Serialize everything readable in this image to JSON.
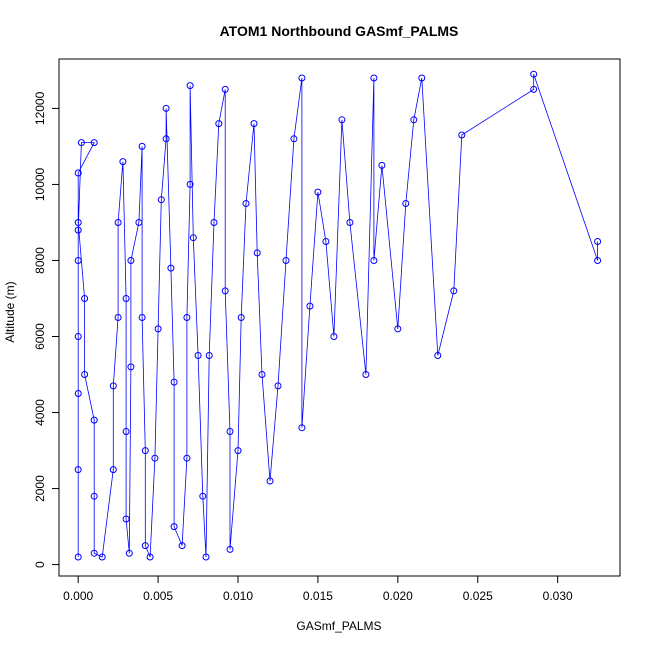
{
  "chart_data": {
    "type": "scatter",
    "title": "ATOM1 Northbound GASmf_PALMS",
    "xlabel": "GASmf_PALMS",
    "ylabel": "Altitude (m)",
    "xlim": [
      -0.0012,
      0.0339
    ],
    "ylim": [
      -300,
      13300
    ],
    "x_ticks": [
      0.0,
      0.005,
      0.01,
      0.015,
      0.02,
      0.025,
      0.03
    ],
    "x_tick_labels": [
      "0.000",
      "0.005",
      "0.010",
      "0.015",
      "0.020",
      "0.025",
      "0.030"
    ],
    "y_ticks": [
      0,
      2000,
      4000,
      6000,
      8000,
      10000,
      12000
    ],
    "y_tick_labels": [
      "0",
      "2000",
      "4000",
      "6000",
      "8000",
      "10000",
      "12000"
    ],
    "marker": "open-circle",
    "connected": true,
    "grid": false,
    "legend": "none",
    "color": "#0000ff",
    "series": [
      {
        "values_note": "",
        "points": [
          [
            0.0,
            200
          ],
          [
            0.0,
            2500
          ],
          [
            0.0,
            4500
          ],
          [
            0.0,
            6000
          ],
          [
            0.0,
            8000
          ],
          [
            0.0,
            8800
          ],
          [
            0.0002,
            11100
          ],
          [
            0.001,
            11100
          ],
          [
            0.0,
            10300
          ],
          [
            0.0,
            9000
          ],
          [
            0.0004,
            7000
          ],
          [
            0.0004,
            5000
          ],
          [
            0.001,
            3800
          ],
          [
            0.001,
            1800
          ],
          [
            0.001,
            300
          ],
          [
            0.0015,
            200
          ],
          [
            0.0022,
            2500
          ],
          [
            0.0022,
            4700
          ],
          [
            0.0025,
            6500
          ],
          [
            0.0025,
            9000
          ],
          [
            0.0028,
            10600
          ],
          [
            0.003,
            7000
          ],
          [
            0.003,
            3500
          ],
          [
            0.003,
            1200
          ],
          [
            0.0032,
            300
          ],
          [
            0.0033,
            5200
          ],
          [
            0.0033,
            8000
          ],
          [
            0.0038,
            9000
          ],
          [
            0.004,
            11000
          ],
          [
            0.004,
            6500
          ],
          [
            0.0042,
            3000
          ],
          [
            0.0042,
            500
          ],
          [
            0.0045,
            200
          ],
          [
            0.0048,
            2800
          ],
          [
            0.005,
            6200
          ],
          [
            0.0052,
            9600
          ],
          [
            0.0055,
            11200
          ],
          [
            0.0055,
            12000
          ],
          [
            0.0058,
            7800
          ],
          [
            0.006,
            4800
          ],
          [
            0.006,
            1000
          ],
          [
            0.0065,
            500
          ],
          [
            0.0068,
            2800
          ],
          [
            0.0068,
            6500
          ],
          [
            0.007,
            10000
          ],
          [
            0.007,
            12600
          ],
          [
            0.0072,
            8600
          ],
          [
            0.0075,
            5500
          ],
          [
            0.0078,
            1800
          ],
          [
            0.008,
            200
          ],
          [
            0.0082,
            5500
          ],
          [
            0.0085,
            9000
          ],
          [
            0.0088,
            11600
          ],
          [
            0.0092,
            12500
          ],
          [
            0.0092,
            7200
          ],
          [
            0.0095,
            3500
          ],
          [
            0.0095,
            400
          ],
          [
            0.01,
            3000
          ],
          [
            0.0102,
            6500
          ],
          [
            0.0105,
            9500
          ],
          [
            0.011,
            11600
          ],
          [
            0.0112,
            8200
          ],
          [
            0.0115,
            5000
          ],
          [
            0.012,
            2200
          ],
          [
            0.0125,
            4700
          ],
          [
            0.013,
            8000
          ],
          [
            0.0135,
            11200
          ],
          [
            0.014,
            12800
          ],
          [
            0.014,
            3600
          ],
          [
            0.0145,
            6800
          ],
          [
            0.015,
            9800
          ],
          [
            0.0155,
            8500
          ],
          [
            0.016,
            6000
          ],
          [
            0.0165,
            11700
          ],
          [
            0.017,
            9000
          ],
          [
            0.018,
            5000
          ],
          [
            0.0185,
            12800
          ],
          [
            0.0185,
            8000
          ],
          [
            0.019,
            10500
          ],
          [
            0.02,
            6200
          ],
          [
            0.0205,
            9500
          ],
          [
            0.021,
            11700
          ],
          [
            0.0215,
            12800
          ],
          [
            0.0225,
            5500
          ],
          [
            0.0235,
            7200
          ],
          [
            0.024,
            11300
          ],
          [
            0.0285,
            12500
          ],
          [
            0.0285,
            12900
          ],
          [
            0.0325,
            8000
          ],
          [
            0.0325,
            8500
          ]
        ]
      }
    ]
  }
}
